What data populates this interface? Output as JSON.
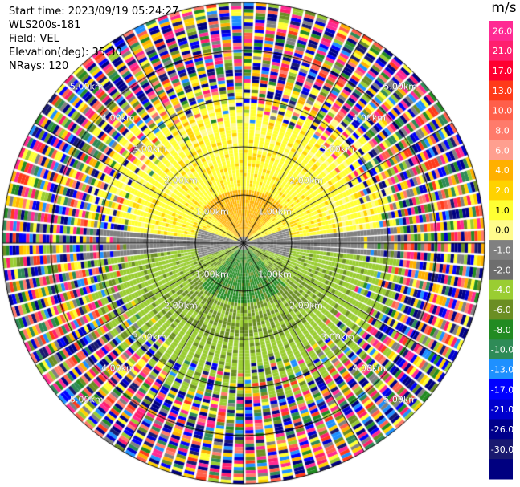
{
  "header": {
    "start_time": "Start time: 2023/09/19 05:24:27",
    "instrument": "WLS200s-181",
    "field": "Field: VEL",
    "elevation": "Elevation(deg): 35.30",
    "nrays": "NRays: 120"
  },
  "colorbar": {
    "unit": "m/s",
    "ticks": [
      "26.0",
      "21.0",
      "17.0",
      "13.0",
      "10.0",
      "8.0",
      "6.0",
      "4.0",
      "2.0",
      "1.0",
      "0.0",
      "-1.0",
      "-2.0",
      "-4.0",
      "-6.0",
      "-8.0",
      "-10.0",
      "-13.0",
      "-17.0",
      "-21.0",
      "-26.0",
      "-30.0"
    ],
    "colors": [
      "#ff2a93",
      "#ff1f6e",
      "#ff0030",
      "#ff3a1a",
      "#ff5f4a",
      "#ff7b6b",
      "#ff9f8f",
      "#ffb000",
      "#ffd200",
      "#ffff33",
      "#fffb8c",
      "#808080",
      "#6e6e6e",
      "#9acd32",
      "#6b8e23",
      "#228b22",
      "#2e8b57",
      "#1e90ff",
      "#0000ff",
      "#0000cd",
      "#00008b",
      "#191970",
      "#000080"
    ]
  },
  "ring_labels": [
    "1.00km",
    "2.00km",
    "3.00km",
    "4.00km",
    "5.00km"
  ]
}
